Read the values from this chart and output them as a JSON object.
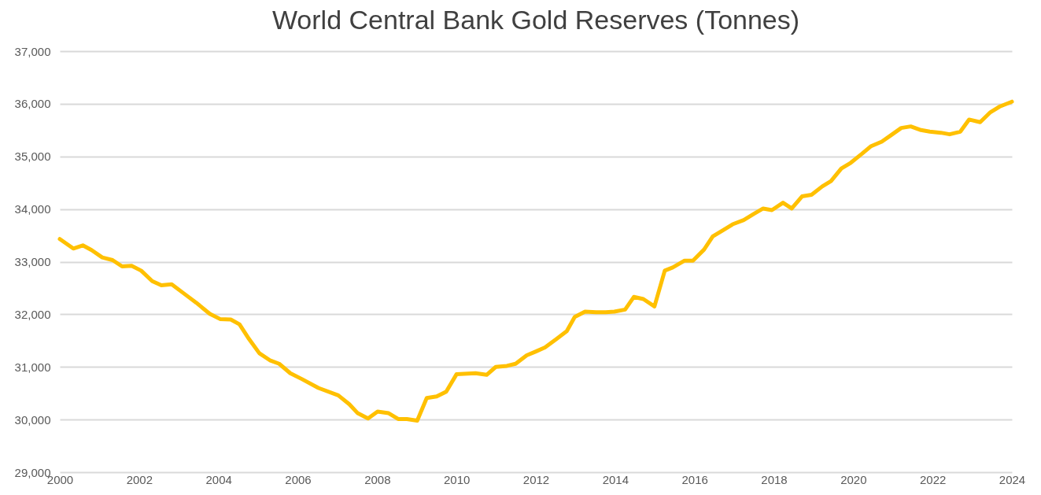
{
  "chart_data": {
    "type": "line",
    "title": "World Central Bank Gold Reserves (Tonnes)",
    "x": [
      2000.0,
      2000.34,
      2000.58,
      2000.8,
      2001.07,
      2001.33,
      2001.57,
      2001.81,
      2002.05,
      2002.33,
      2002.56,
      2002.82,
      2003.12,
      2003.44,
      2003.78,
      2004.04,
      2004.31,
      2004.53,
      2004.77,
      2005.03,
      2005.31,
      2005.53,
      2005.81,
      2006.1,
      2006.52,
      2007.02,
      2007.3,
      2007.51,
      2007.77,
      2008.01,
      2008.29,
      2008.53,
      2008.75,
      2009.01,
      2009.25,
      2009.5,
      2009.74,
      2010.0,
      2010.48,
      2010.76,
      2010.99,
      2011.27,
      2011.49,
      2011.77,
      2011.99,
      2012.23,
      2012.52,
      2012.78,
      2012.98,
      2013.24,
      2013.52,
      2013.76,
      2013.98,
      2014.25,
      2014.47,
      2014.71,
      2014.99,
      2015.25,
      2015.45,
      2015.75,
      2015.96,
      2016.24,
      2016.46,
      2016.7,
      2016.96,
      2017.24,
      2017.5,
      2017.73,
      2017.95,
      2018.23,
      2018.45,
      2018.71,
      2018.95,
      2019.22,
      2019.44,
      2019.7,
      2019.94,
      2020.22,
      2020.44,
      2020.72,
      2020.93,
      2021.21,
      2021.45,
      2021.71,
      2021.93,
      2022.21,
      2022.43,
      2022.7,
      2022.92,
      2023.2,
      2023.46,
      2023.7,
      2024.0
    ],
    "series": [
      {
        "color": "#ffc000",
        "values": [
          33430,
          33250,
          33310,
          33220,
          33080,
          33030,
          32910,
          32920,
          32830,
          32630,
          32550,
          32570,
          32400,
          32220,
          32010,
          31910,
          31900,
          31810,
          31530,
          31260,
          31120,
          31060,
          30880,
          30770,
          30600,
          30460,
          30290,
          30120,
          30020,
          30150,
          30120,
          30010,
          30010,
          29980,
          30410,
          30440,
          30530,
          30860,
          30880,
          30850,
          31000,
          31020,
          31060,
          31220,
          31290,
          31370,
          31530,
          31680,
          31950,
          32050,
          32040,
          32040,
          32050,
          32090,
          32330,
          32290,
          32150,
          32830,
          32890,
          33020,
          33020,
          33230,
          33480,
          33590,
          33710,
          33790,
          33910,
          34010,
          33980,
          34120,
          34010,
          34240,
          34270,
          34430,
          34530,
          34770,
          34880,
          35050,
          35190,
          35280,
          35390,
          35540,
          35570,
          35500,
          35470,
          35450,
          35420,
          35470,
          35700,
          35650,
          35840,
          35950,
          36040
        ]
      }
    ],
    "xlim": [
      2000,
      2024
    ],
    "xticks": [
      2000,
      2002,
      2004,
      2006,
      2008,
      2010,
      2012,
      2014,
      2016,
      2018,
      2020,
      2022,
      2024
    ],
    "ylim": [
      29000,
      37000
    ],
    "yticks": [
      {
        "value": 29000,
        "label": "29,000"
      },
      {
        "value": 30000,
        "label": "30,000"
      },
      {
        "value": 31000,
        "label": "31,000"
      },
      {
        "value": 32000,
        "label": "32,000"
      },
      {
        "value": 33000,
        "label": "33,000"
      },
      {
        "value": 34000,
        "label": "34,000"
      },
      {
        "value": 35000,
        "label": "35,000"
      },
      {
        "value": 36000,
        "label": "36,000"
      },
      {
        "value": 37000,
        "label": "37,000"
      }
    ],
    "grid": "y",
    "marker": "none",
    "line_style": "solid"
  }
}
